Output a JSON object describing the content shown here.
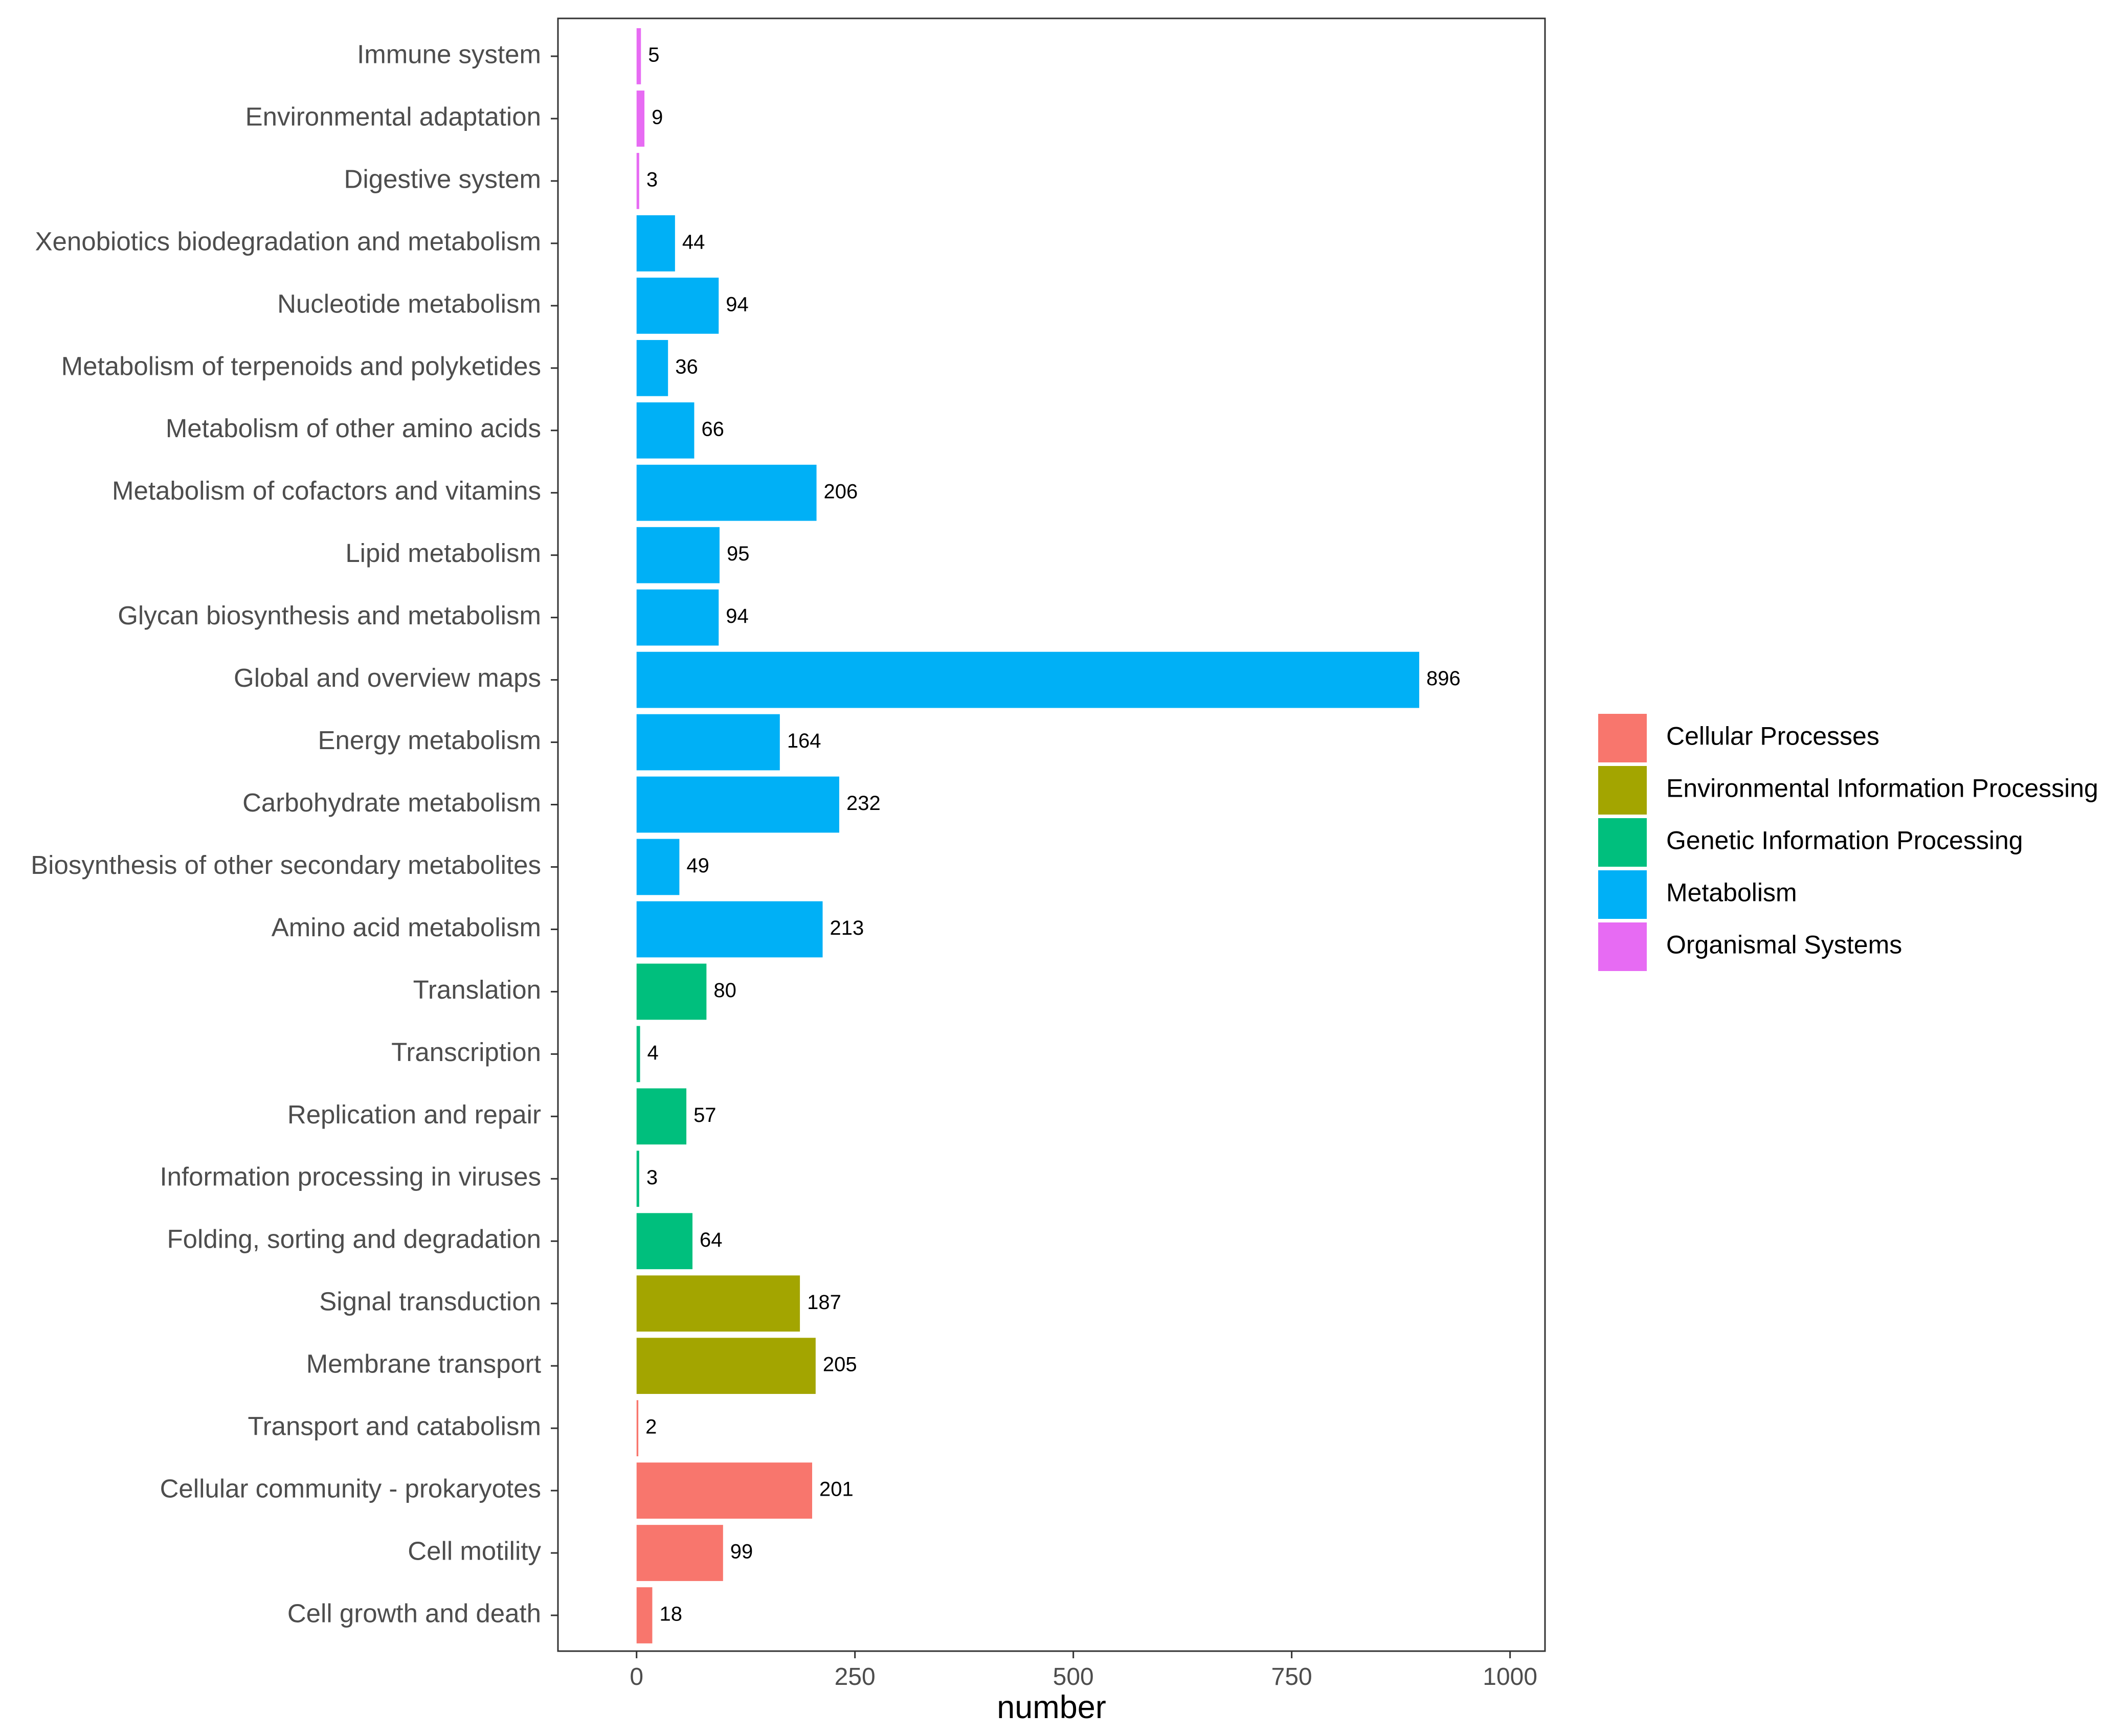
{
  "chart_data": {
    "type": "bar",
    "orientation": "horizontal",
    "title": "",
    "xlabel": "number",
    "ylabel": "",
    "xlim": [
      -90,
      1040
    ],
    "xticks": [
      0,
      250,
      500,
      750,
      1000
    ],
    "grid": false,
    "legend_position": "right",
    "categories": [
      "Immune system",
      "Environmental adaptation",
      "Digestive system",
      "Xenobiotics biodegradation and metabolism",
      "Nucleotide metabolism",
      "Metabolism of terpenoids and polyketides",
      "Metabolism of other amino acids",
      "Metabolism of cofactors and vitamins",
      "Lipid metabolism",
      "Glycan biosynthesis and metabolism",
      "Global and overview maps",
      "Energy metabolism",
      "Carbohydrate metabolism",
      "Biosynthesis of other secondary metabolites",
      "Amino acid metabolism",
      "Translation",
      "Transcription",
      "Replication and repair",
      "Information processing in viruses",
      "Folding, sorting and degradation",
      "Signal transduction",
      "Membrane transport",
      "Transport and catabolism",
      "Cellular community - prokaryotes",
      "Cell motility",
      "Cell growth and death"
    ],
    "values": [
      5,
      9,
      3,
      44,
      94,
      36,
      66,
      206,
      95,
      94,
      896,
      164,
      232,
      49,
      213,
      80,
      4,
      57,
      3,
      64,
      187,
      205,
      2,
      201,
      99,
      18
    ],
    "groups": [
      "Organismal Systems",
      "Organismal Systems",
      "Organismal Systems",
      "Metabolism",
      "Metabolism",
      "Metabolism",
      "Metabolism",
      "Metabolism",
      "Metabolism",
      "Metabolism",
      "Metabolism",
      "Metabolism",
      "Metabolism",
      "Metabolism",
      "Metabolism",
      "Genetic Information Processing",
      "Genetic Information Processing",
      "Genetic Information Processing",
      "Genetic Information Processing",
      "Genetic Information Processing",
      "Environmental Information Processing",
      "Environmental Information Processing",
      "Cellular Processes",
      "Cellular Processes",
      "Cellular Processes",
      "Cellular Processes"
    ],
    "legend": [
      {
        "name": "Cellular Processes",
        "color": "#F8766D"
      },
      {
        "name": "Environmental Information Processing",
        "color": "#A3A500"
      },
      {
        "name": "Genetic Information Processing",
        "color": "#00BF7D"
      },
      {
        "name": "Metabolism",
        "color": "#00B0F6"
      },
      {
        "name": "Organismal Systems",
        "color": "#E76BF3"
      }
    ]
  }
}
